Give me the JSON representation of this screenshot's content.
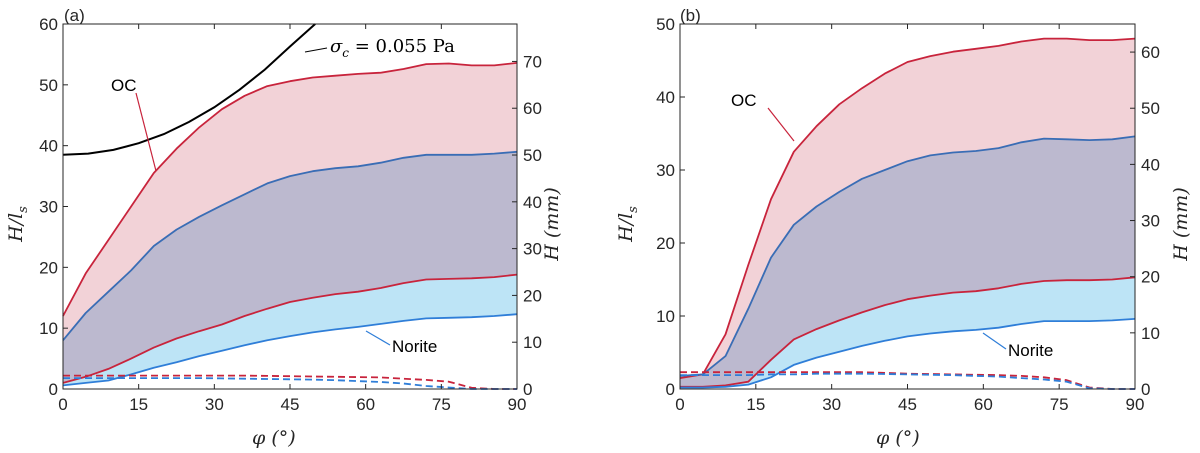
{
  "chart_data": [
    {
      "type": "area",
      "panel_label": "(a)",
      "xlabel": "φ (°)",
      "ylabel_left": "H/l_s",
      "ylabel_left_text": "H/l",
      "ylabel_left_sub": "s",
      "ylabel_right": "H (mm)",
      "xlim": [
        0,
        90
      ],
      "ylim_left": [
        0,
        60
      ],
      "ylim_right": [
        0,
        78
      ],
      "xticks": [
        0,
        15,
        30,
        45,
        60,
        75,
        90
      ],
      "yticks_left": [
        0,
        10,
        20,
        30,
        40,
        50,
        60
      ],
      "yticks_right": [
        0,
        10,
        20,
        30,
        40,
        50,
        60,
        70
      ],
      "x": [
        0,
        4.5,
        9,
        13.5,
        18,
        22.5,
        27,
        31.5,
        36,
        40.5,
        45,
        49.5,
        54,
        58.5,
        63,
        67.5,
        72,
        76.5,
        81,
        85.5,
        90
      ],
      "series": [
        {
          "name": "OC upper",
          "color": "#c8243c",
          "values": [
            12,
            19,
            24.5,
            30,
            35.5,
            39.5,
            43,
            46,
            48.2,
            49.8,
            50.6,
            51.2,
            51.5,
            51.8,
            52,
            52.6,
            53.4,
            53.5,
            53.2,
            53.2,
            53.6
          ]
        },
        {
          "name": "OC lower",
          "color": "#c8243c",
          "values": [
            1,
            2,
            3.3,
            5,
            6.8,
            8.3,
            9.5,
            10.6,
            12,
            13.2,
            14.3,
            15,
            15.6,
            16,
            16.6,
            17.4,
            18,
            18.1,
            18.2,
            18.4,
            18.8
          ]
        },
        {
          "name": "Norite upper",
          "color": "#3a6db5",
          "values": [
            8,
            12.5,
            16,
            19.5,
            23.5,
            26.2,
            28.3,
            30.2,
            32,
            33.8,
            35,
            35.8,
            36.3,
            36.6,
            37.2,
            38,
            38.5,
            38.5,
            38.5,
            38.7,
            39
          ]
        },
        {
          "name": "Norite lower",
          "color": "#2f7ed8",
          "values": [
            0.6,
            1,
            1.4,
            2.4,
            3.5,
            4.4,
            5.4,
            6.3,
            7.2,
            8,
            8.7,
            9.3,
            9.8,
            10.2,
            10.7,
            11.2,
            11.6,
            11.7,
            11.8,
            12,
            12.3
          ]
        },
        {
          "name": "OC dashed",
          "color": "#c8243c",
          "values": [
            2.2,
            2.2,
            2.2,
            2.2,
            2.2,
            2.2,
            2.2,
            2.2,
            2.2,
            2.15,
            2.1,
            2.05,
            2,
            1.95,
            1.9,
            1.7,
            1.5,
            1.2,
            0.2,
            0,
            0
          ]
        },
        {
          "name": "Norite dashed",
          "color": "#2f7ed8",
          "values": [
            1.8,
            1.8,
            1.8,
            1.8,
            1.8,
            1.8,
            1.8,
            1.75,
            1.7,
            1.65,
            1.6,
            1.55,
            1.45,
            1.3,
            1.15,
            0.9,
            0.5,
            0.25,
            0,
            0,
            0
          ]
        }
      ],
      "curve": {
        "name": "σc = 0.055 Pa",
        "label": "σ",
        "label_sub": "c",
        "label_rest": " = 0.055 Pa",
        "color": "#000000",
        "x": [
          0,
          5,
          10,
          15,
          20,
          25,
          30,
          35,
          40,
          45,
          50
        ],
        "values": [
          38.5,
          38.7,
          39.3,
          40.4,
          41.9,
          43.9,
          46.3,
          49.2,
          52.5,
          56.3,
          60
        ]
      },
      "annotations": [
        {
          "text": "OC"
        },
        {
          "text": "Norite"
        }
      ]
    },
    {
      "type": "area",
      "panel_label": "(b)",
      "xlabel": "φ (°)",
      "ylabel_left": "H/l_s",
      "ylabel_left_text": "H/l",
      "ylabel_left_sub": "s",
      "ylabel_right": "H (mm)",
      "xlim": [
        0,
        90
      ],
      "ylim_left": [
        0,
        50
      ],
      "ylim_right": [
        0,
        65
      ],
      "xticks": [
        0,
        15,
        30,
        45,
        60,
        75,
        90
      ],
      "yticks_left": [
        0,
        10,
        20,
        30,
        40,
        50
      ],
      "yticks_right": [
        0,
        10,
        20,
        30,
        40,
        50,
        60
      ],
      "x": [
        0,
        4.5,
        9,
        13.5,
        18,
        22.5,
        27,
        31.5,
        36,
        40.5,
        45,
        49.5,
        54,
        58.5,
        63,
        67.5,
        72,
        76.5,
        81,
        85.5,
        90
      ],
      "series": [
        {
          "name": "OC upper",
          "color": "#c8243c",
          "values": [
            1.5,
            2,
            7.5,
            17,
            26,
            32.5,
            36,
            39,
            41.2,
            43.2,
            44.8,
            45.6,
            46.2,
            46.6,
            47,
            47.6,
            48,
            48,
            47.8,
            47.8,
            48
          ]
        },
        {
          "name": "OC lower",
          "color": "#c8243c",
          "values": [
            0.3,
            0.3,
            0.5,
            1,
            4,
            6.8,
            8.2,
            9.4,
            10.5,
            11.5,
            12.3,
            12.8,
            13.2,
            13.4,
            13.8,
            14.4,
            14.8,
            14.9,
            14.9,
            15,
            15.3
          ]
        },
        {
          "name": "Norite upper",
          "color": "#3a6db5",
          "values": [
            1.8,
            2,
            4.5,
            11,
            18,
            22.5,
            25,
            27,
            28.8,
            30,
            31.2,
            32,
            32.4,
            32.6,
            33,
            33.8,
            34.3,
            34.2,
            34.1,
            34.2,
            34.6
          ]
        },
        {
          "name": "Norite lower",
          "color": "#2f7ed8",
          "values": [
            0.2,
            0.2,
            0.3,
            0.6,
            1.6,
            3.3,
            4.3,
            5.1,
            5.9,
            6.6,
            7.2,
            7.6,
            7.9,
            8.1,
            8.4,
            8.9,
            9.3,
            9.3,
            9.3,
            9.4,
            9.6
          ]
        },
        {
          "name": "OC dashed",
          "color": "#c8243c",
          "values": [
            2.3,
            2.3,
            2.3,
            2.3,
            2.3,
            2.3,
            2.3,
            2.3,
            2.3,
            2.2,
            2.1,
            2.05,
            2,
            1.95,
            1.9,
            1.8,
            1.6,
            1.2,
            0.2,
            0,
            0
          ]
        },
        {
          "name": "Norite dashed",
          "color": "#2f7ed8",
          "values": [
            1.9,
            1.9,
            1.9,
            1.9,
            2,
            2,
            2.1,
            2.1,
            2.1,
            2.05,
            2,
            1.95,
            1.9,
            1.8,
            1.7,
            1.5,
            1.3,
            1,
            0.1,
            0,
            0
          ]
        }
      ],
      "annotations": [
        {
          "text": "OC"
        },
        {
          "text": "Norite"
        }
      ]
    }
  ]
}
